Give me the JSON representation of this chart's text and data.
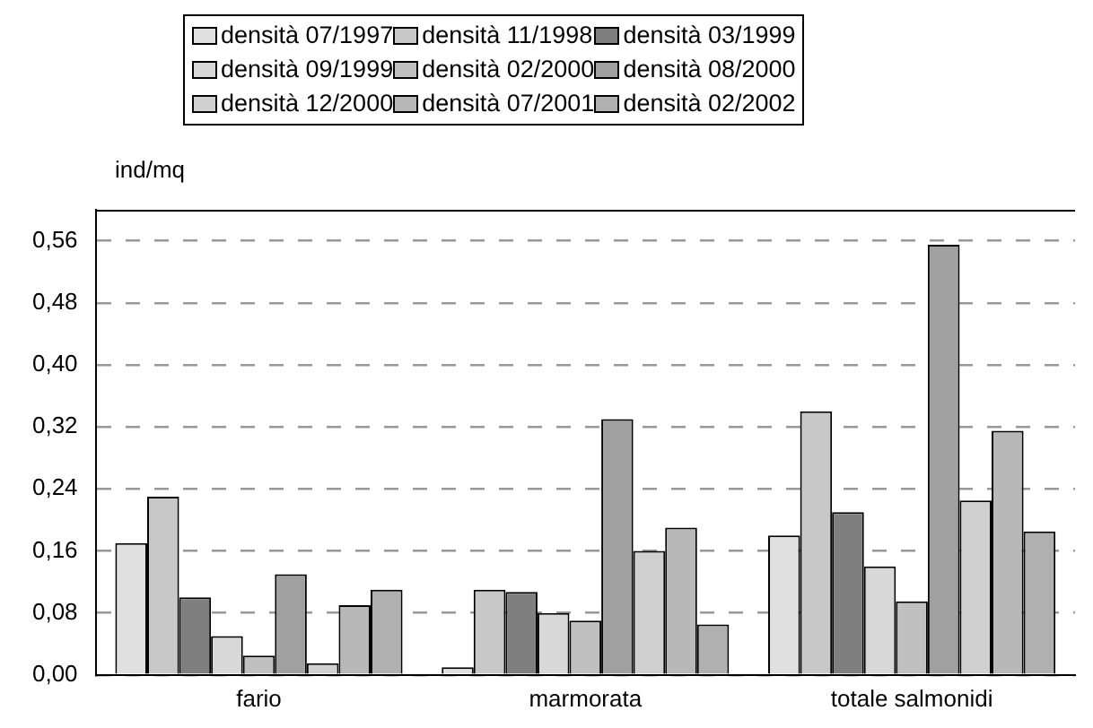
{
  "chart_data": {
    "type": "bar",
    "ylabel": "ind/mq",
    "categories": [
      "fario",
      "marmorata",
      "totale salmonidi"
    ],
    "series": [
      {
        "name": "densità 07/1997",
        "color": "#e0e0e0",
        "values": [
          0.17,
          0.01,
          0.18
        ]
      },
      {
        "name": "densità 11/1998",
        "color": "#c8c8c8",
        "values": [
          0.23,
          0.11,
          0.34
        ]
      },
      {
        "name": "densità 03/1999",
        "color": "#7f7f7f",
        "values": [
          0.1,
          0.107,
          0.21
        ]
      },
      {
        "name": "densità 09/1999",
        "color": "#d8d8d8",
        "values": [
          0.05,
          0.08,
          0.14
        ]
      },
      {
        "name": "densità 02/2000",
        "color": "#c0c0c0",
        "values": [
          0.025,
          0.07,
          0.095
        ]
      },
      {
        "name": "densità 08/2000",
        "color": "#a0a0a0",
        "values": [
          0.13,
          0.33,
          0.555
        ]
      },
      {
        "name": "densità 12/2000",
        "color": "#d0d0d0",
        "values": [
          0.015,
          0.16,
          0.225
        ]
      },
      {
        "name": "densità 07/2001",
        "color": "#b8b8b8",
        "values": [
          0.09,
          0.19,
          0.315
        ]
      },
      {
        "name": "densità 02/2002",
        "color": "#b0b0b0",
        "values": [
          0.11,
          0.065,
          0.185
        ]
      }
    ],
    "ylim": [
      0,
      0.6
    ],
    "yticks": [
      {
        "value": 0,
        "label": "0,00"
      },
      {
        "value": 0.08,
        "label": "0,08"
      },
      {
        "value": 0.16,
        "label": "0,16"
      },
      {
        "value": 0.24,
        "label": "0,24"
      },
      {
        "value": 0.32,
        "label": "0,32"
      },
      {
        "value": 0.4,
        "label": "0,40"
      },
      {
        "value": 0.48,
        "label": "0,48"
      },
      {
        "value": 0.56,
        "label": "0,56"
      }
    ],
    "grid": "y",
    "legend": "top"
  }
}
